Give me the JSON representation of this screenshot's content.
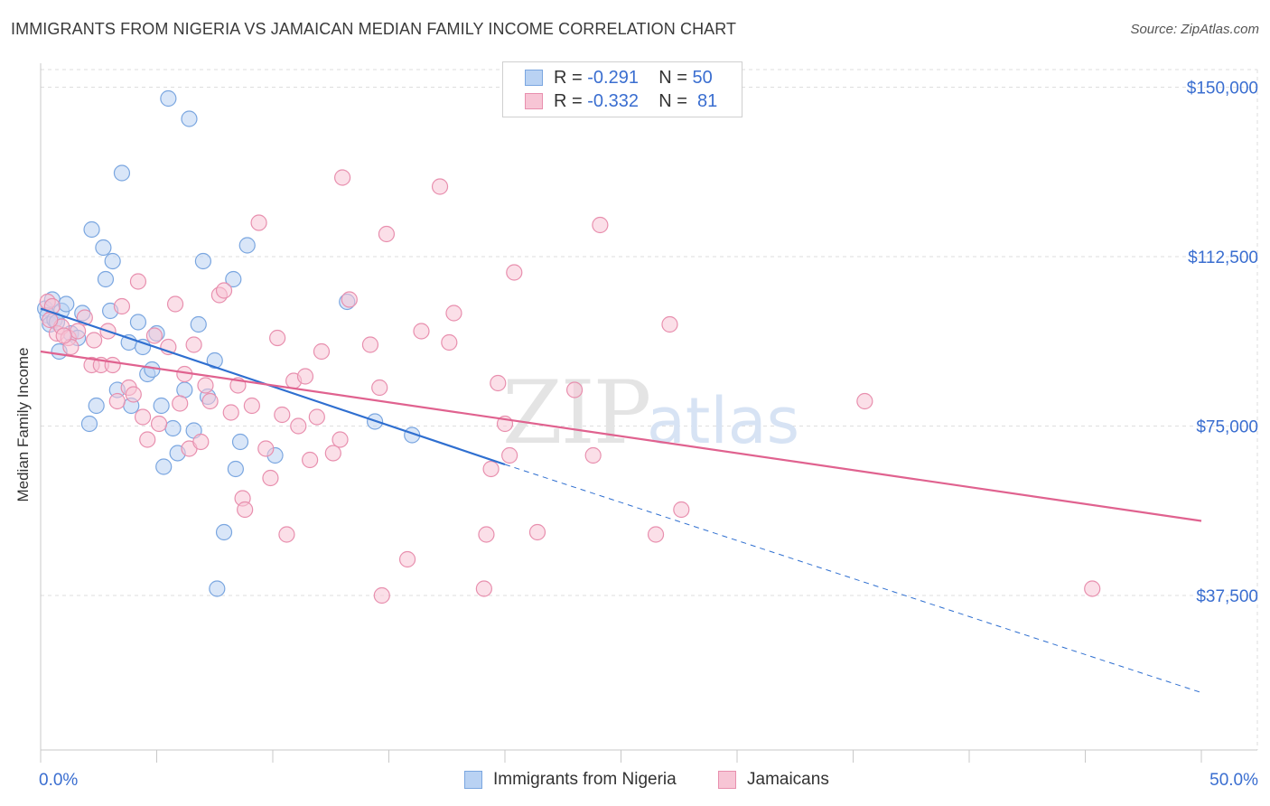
{
  "title": "IMMIGRANTS FROM NIGERIA VS JAMAICAN MEDIAN FAMILY INCOME CORRELATION CHART",
  "source": "Source: ZipAtlas.com",
  "watermark": {
    "zip": "ZIP",
    "atlas": "atlas"
  },
  "legend_top": [
    {
      "r_label": "R =",
      "r_value": "-0.291",
      "n_label": "N =",
      "n_value": "50"
    },
    {
      "r_label": "R =",
      "r_value": "-0.332",
      "n_label": "N =",
      "n_value": "81"
    }
  ],
  "legend_bottom": [
    "Immigrants from Nigeria",
    "Jamaicans"
  ],
  "colors": {
    "blue_fill": "#b9d2f3",
    "blue_stroke": "#7aa6e0",
    "blue_line": "#2f6fd0",
    "pink_fill": "#f7c5d5",
    "pink_stroke": "#e88fae",
    "pink_line": "#e0628f",
    "axis_text": "#3a6ed0",
    "grid": "#dedede"
  },
  "chart_data": {
    "type": "scatter",
    "title": "IMMIGRANTS FROM NIGERIA VS JAMAICAN MEDIAN FAMILY INCOME CORRELATION CHART",
    "xlabel": "",
    "ylabel": "Median Family Income",
    "xlim": [
      0,
      50
    ],
    "ylim": [
      0,
      155000
    ],
    "x_tick_labels": [
      "0.0%",
      "50.0%"
    ],
    "y_ticks": [
      37500,
      75000,
      112500,
      150000
    ],
    "y_tick_labels": [
      "$37,500",
      "$75,000",
      "$112,500",
      "$150,000"
    ],
    "series": [
      {
        "name": "Immigrants from Nigeria",
        "r": -0.291,
        "n": 50,
        "trend": {
          "x": [
            0,
            20
          ],
          "y": [
            101000,
            66500
          ],
          "dashed_to": {
            "x": 50,
            "y": 16000
          }
        },
        "points": [
          [
            0.2,
            101000
          ],
          [
            0.3,
            99500
          ],
          [
            0.4,
            97500
          ],
          [
            0.5,
            103000
          ],
          [
            0.6,
            98500
          ],
          [
            0.8,
            91500
          ],
          [
            0.9,
            100500
          ],
          [
            1.1,
            102000
          ],
          [
            1.3,
            95500
          ],
          [
            1.6,
            94500
          ],
          [
            1.8,
            100000
          ],
          [
            2.1,
            75500
          ],
          [
            2.2,
            118500
          ],
          [
            2.4,
            79500
          ],
          [
            2.7,
            114500
          ],
          [
            2.8,
            107500
          ],
          [
            3.0,
            100500
          ],
          [
            3.1,
            111500
          ],
          [
            3.3,
            83000
          ],
          [
            3.5,
            131000
          ],
          [
            3.9,
            79500
          ],
          [
            3.8,
            93500
          ],
          [
            4.2,
            98000
          ],
          [
            4.4,
            92500
          ],
          [
            4.6,
            86500
          ],
          [
            4.8,
            87500
          ],
          [
            5.0,
            95500
          ],
          [
            5.2,
            79500
          ],
          [
            5.3,
            66000
          ],
          [
            5.5,
            147500
          ],
          [
            5.7,
            74500
          ],
          [
            5.9,
            69000
          ],
          [
            6.2,
            83000
          ],
          [
            6.4,
            143000
          ],
          [
            6.6,
            74000
          ],
          [
            6.8,
            97500
          ],
          [
            7.0,
            111500
          ],
          [
            7.2,
            81500
          ],
          [
            7.5,
            89500
          ],
          [
            7.6,
            39000
          ],
          [
            7.9,
            51500
          ],
          [
            8.3,
            107500
          ],
          [
            8.4,
            65500
          ],
          [
            8.6,
            71500
          ],
          [
            8.9,
            115000
          ],
          [
            10.1,
            68500
          ],
          [
            13.2,
            102500
          ],
          [
            14.4,
            76000
          ],
          [
            16.0,
            73000
          ],
          [
            0.7,
            98000
          ]
        ]
      },
      {
        "name": "Jamaicans",
        "r": -0.332,
        "n": 81,
        "trend": {
          "x": [
            0,
            50
          ],
          "y": [
            91500,
            54000
          ]
        },
        "points": [
          [
            0.3,
            102500
          ],
          [
            0.5,
            101500
          ],
          [
            0.7,
            95500
          ],
          [
            0.9,
            97000
          ],
          [
            1.2,
            94500
          ],
          [
            1.3,
            92500
          ],
          [
            1.6,
            96000
          ],
          [
            1.9,
            99000
          ],
          [
            2.2,
            88500
          ],
          [
            2.3,
            94000
          ],
          [
            2.6,
            88500
          ],
          [
            2.9,
            96000
          ],
          [
            3.1,
            88500
          ],
          [
            3.3,
            80500
          ],
          [
            3.5,
            101500
          ],
          [
            3.8,
            83500
          ],
          [
            4.0,
            82000
          ],
          [
            4.2,
            107000
          ],
          [
            4.4,
            77000
          ],
          [
            4.6,
            72000
          ],
          [
            4.9,
            95000
          ],
          [
            5.1,
            75500
          ],
          [
            5.5,
            92500
          ],
          [
            5.8,
            102000
          ],
          [
            6.0,
            80000
          ],
          [
            6.2,
            86500
          ],
          [
            6.4,
            70000
          ],
          [
            6.6,
            93000
          ],
          [
            6.9,
            71500
          ],
          [
            7.1,
            84000
          ],
          [
            7.3,
            80500
          ],
          [
            7.7,
            104000
          ],
          [
            7.9,
            105000
          ],
          [
            8.2,
            78000
          ],
          [
            8.5,
            84000
          ],
          [
            8.7,
            59000
          ],
          [
            8.8,
            56500
          ],
          [
            9.1,
            79500
          ],
          [
            9.4,
            120000
          ],
          [
            9.7,
            70000
          ],
          [
            9.9,
            63500
          ],
          [
            10.2,
            94500
          ],
          [
            10.4,
            77500
          ],
          [
            10.6,
            51000
          ],
          [
            10.9,
            85000
          ],
          [
            11.1,
            75000
          ],
          [
            11.4,
            86000
          ],
          [
            11.6,
            67500
          ],
          [
            11.9,
            77000
          ],
          [
            12.1,
            91500
          ],
          [
            12.6,
            69000
          ],
          [
            12.9,
            72000
          ],
          [
            13.0,
            130000
          ],
          [
            13.3,
            103000
          ],
          [
            14.2,
            93000
          ],
          [
            14.6,
            83500
          ],
          [
            14.7,
            37500
          ],
          [
            14.9,
            117500
          ],
          [
            15.8,
            45500
          ],
          [
            16.4,
            96000
          ],
          [
            17.2,
            128000
          ],
          [
            17.6,
            93500
          ],
          [
            17.8,
            100000
          ],
          [
            19.1,
            39000
          ],
          [
            19.2,
            51000
          ],
          [
            19.4,
            65500
          ],
          [
            19.7,
            84500
          ],
          [
            20.0,
            75500
          ],
          [
            20.2,
            68500
          ],
          [
            20.4,
            109000
          ],
          [
            21.4,
            51500
          ],
          [
            23.0,
            83000
          ],
          [
            23.8,
            68500
          ],
          [
            24.1,
            119500
          ],
          [
            26.5,
            51000
          ],
          [
            27.1,
            97500
          ],
          [
            27.6,
            56500
          ],
          [
            35.5,
            80500
          ],
          [
            45.3,
            39000
          ],
          [
            1.0,
            95000
          ],
          [
            0.4,
            98500
          ]
        ]
      }
    ]
  }
}
